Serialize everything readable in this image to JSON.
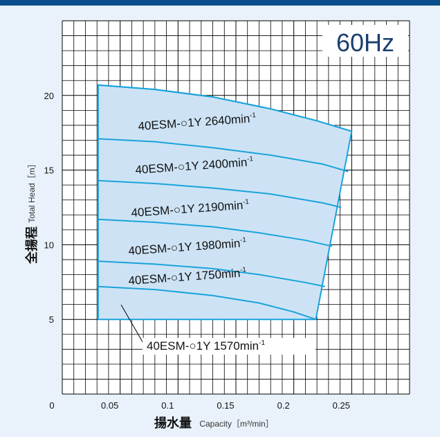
{
  "chart_data": {
    "type": "area",
    "frequency_label": "60Hz",
    "xlabel": "揚水量",
    "xlabel_sub": "Capacity［m³/min］",
    "ylabel": "全揚程",
    "ylabel_sub": "Total Head［m］",
    "xlim": [
      0,
      0.3
    ],
    "ylim": [
      0,
      25
    ],
    "x_ticks": [
      "0",
      "0.05",
      "0.1",
      "0.15",
      "0.2",
      "0.25"
    ],
    "x_tick_values": [
      0,
      0.05,
      0.1,
      0.15,
      0.2,
      0.25
    ],
    "y_ticks": [
      "5",
      "10",
      "15",
      "20"
    ],
    "y_tick_values": [
      5,
      10,
      15,
      20
    ],
    "grid": true,
    "region_color": "#cde3f5",
    "line_color": "#1aa3db",
    "series": [
      {
        "name": "40ESM-○1Y",
        "speed": "2640",
        "unit": "min",
        "sup": "-1",
        "x": [
          0.031,
          0.08,
          0.13,
          0.18,
          0.22,
          0.25
        ],
        "y": [
          20.7,
          20.4,
          19.9,
          19.1,
          18.3,
          17.6
        ]
      },
      {
        "name": "40ESM-○1Y",
        "speed": "2400",
        "unit": "min",
        "sup": "-1",
        "x": [
          0.031,
          0.08,
          0.13,
          0.18,
          0.225,
          0.247
        ],
        "y": [
          17.1,
          16.9,
          16.5,
          16.0,
          15.4,
          14.9
        ]
      },
      {
        "name": "40ESM-○1Y",
        "speed": "2190",
        "unit": "min",
        "sup": "-1",
        "x": [
          0.031,
          0.08,
          0.13,
          0.18,
          0.225,
          0.241
        ],
        "y": [
          14.3,
          14.1,
          13.8,
          13.4,
          12.8,
          12.5
        ]
      },
      {
        "name": "40ESM-○1Y",
        "speed": "1980",
        "unit": "min",
        "sup": "-1",
        "x": [
          0.031,
          0.08,
          0.13,
          0.17,
          0.21,
          0.233
        ],
        "y": [
          11.7,
          11.5,
          11.2,
          10.8,
          10.3,
          9.9
        ]
      },
      {
        "name": "40ESM-○1Y",
        "speed": "1750",
        "unit": "min",
        "sup": "-1",
        "x": [
          0.031,
          0.08,
          0.13,
          0.17,
          0.208,
          0.227
        ],
        "y": [
          8.9,
          8.7,
          8.4,
          8.0,
          7.5,
          7.2
        ]
      },
      {
        "name": "40ESM-○1Y",
        "speed": "1570",
        "unit": "min",
        "sup": "-1",
        "x": [
          0.031,
          0.08,
          0.13,
          0.17,
          0.2,
          0.219
        ],
        "y": [
          7.2,
          7.0,
          6.6,
          6.1,
          5.5,
          5.0
        ]
      }
    ],
    "label_texts": [
      "40ESM-○1Y  2640min-1",
      "40ESM-○1Y  2400min-1",
      "40ESM-○1Y  2190min-1",
      "40ESM-○1Y  1980min-1",
      "40ESM-○1Y  1750min-1",
      "40ESM-○1Y  1570min-1"
    ]
  }
}
